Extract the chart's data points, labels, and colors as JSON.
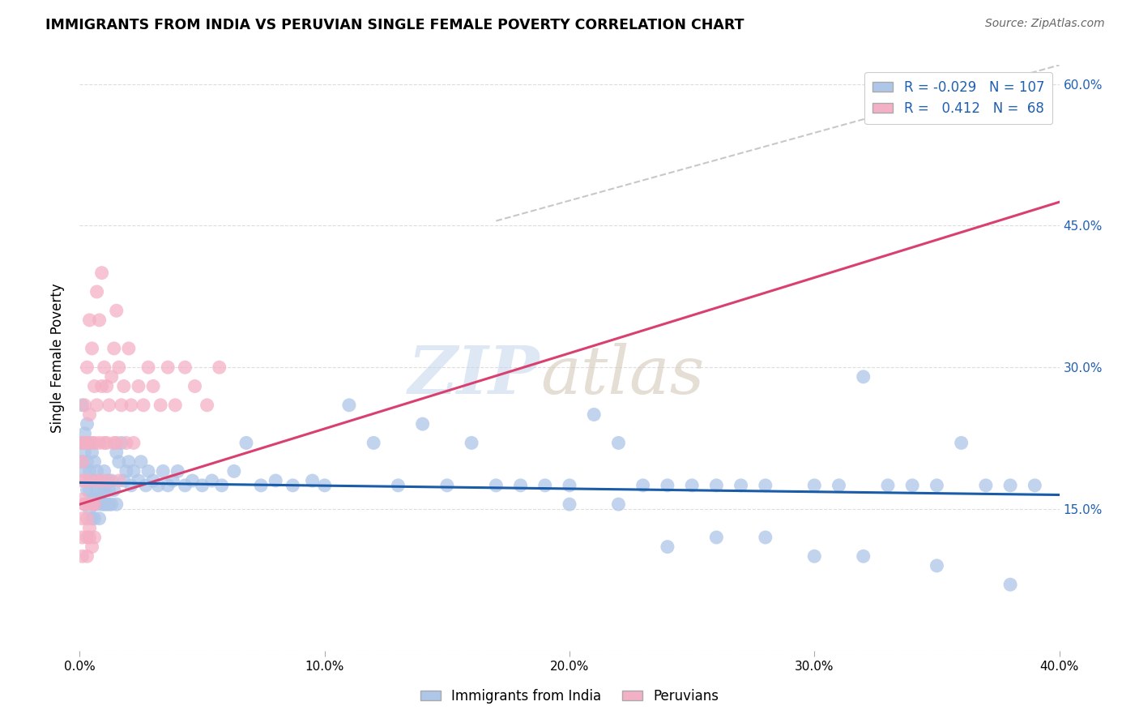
{
  "title": "IMMIGRANTS FROM INDIA VS PERUVIAN SINGLE FEMALE POVERTY CORRELATION CHART",
  "source": "Source: ZipAtlas.com",
  "ylabel": "Single Female Poverty",
  "legend_india_R": "-0.029",
  "legend_india_N": "107",
  "legend_peru_R": "0.412",
  "legend_peru_N": "68",
  "legend_label_india": "Immigrants from India",
  "legend_label_peru": "Peruvians",
  "color_india": "#aec6e8",
  "color_peru": "#f4b0c5",
  "trendline_india_color": "#1a5ca8",
  "trendline_peru_color": "#d94070",
  "trendline_dashed_color": "#c8c8c8",
  "background_color": "#ffffff",
  "xlim": [
    0.0,
    0.4
  ],
  "ylim": [
    0.0,
    0.62
  ],
  "ytick_vals": [
    0.0,
    0.15,
    0.3,
    0.45,
    0.6
  ],
  "xtick_vals": [
    0.0,
    0.1,
    0.2,
    0.3,
    0.4
  ],
  "india_x": [
    0.001,
    0.001,
    0.001,
    0.002,
    0.002,
    0.002,
    0.003,
    0.003,
    0.003,
    0.004,
    0.004,
    0.004,
    0.004,
    0.005,
    0.005,
    0.005,
    0.005,
    0.006,
    0.006,
    0.006,
    0.006,
    0.007,
    0.007,
    0.007,
    0.008,
    0.008,
    0.008,
    0.009,
    0.009,
    0.01,
    0.01,
    0.01,
    0.011,
    0.011,
    0.012,
    0.012,
    0.013,
    0.013,
    0.014,
    0.015,
    0.015,
    0.016,
    0.017,
    0.018,
    0.019,
    0.02,
    0.021,
    0.022,
    0.024,
    0.025,
    0.027,
    0.028,
    0.03,
    0.032,
    0.034,
    0.036,
    0.038,
    0.04,
    0.043,
    0.046,
    0.05,
    0.054,
    0.058,
    0.063,
    0.068,
    0.074,
    0.08,
    0.087,
    0.095,
    0.1,
    0.11,
    0.12,
    0.13,
    0.14,
    0.15,
    0.16,
    0.17,
    0.18,
    0.19,
    0.2,
    0.21,
    0.22,
    0.23,
    0.24,
    0.25,
    0.26,
    0.27,
    0.28,
    0.3,
    0.31,
    0.32,
    0.33,
    0.34,
    0.35,
    0.36,
    0.37,
    0.38,
    0.39,
    0.2,
    0.22,
    0.24,
    0.26,
    0.28,
    0.3,
    0.32,
    0.35,
    0.38
  ],
  "india_y": [
    0.26,
    0.22,
    0.2,
    0.23,
    0.21,
    0.19,
    0.24,
    0.2,
    0.17,
    0.22,
    0.19,
    0.17,
    0.15,
    0.21,
    0.18,
    0.16,
    0.14,
    0.2,
    0.18,
    0.16,
    0.14,
    0.19,
    0.17,
    0.155,
    0.18,
    0.16,
    0.14,
    0.17,
    0.155,
    0.19,
    0.17,
    0.155,
    0.18,
    0.155,
    0.17,
    0.155,
    0.18,
    0.155,
    0.17,
    0.21,
    0.155,
    0.2,
    0.22,
    0.18,
    0.19,
    0.2,
    0.175,
    0.19,
    0.18,
    0.2,
    0.175,
    0.19,
    0.18,
    0.175,
    0.19,
    0.175,
    0.18,
    0.19,
    0.175,
    0.18,
    0.175,
    0.18,
    0.175,
    0.19,
    0.22,
    0.175,
    0.18,
    0.175,
    0.18,
    0.175,
    0.26,
    0.22,
    0.175,
    0.24,
    0.175,
    0.22,
    0.175,
    0.175,
    0.175,
    0.175,
    0.25,
    0.22,
    0.175,
    0.175,
    0.175,
    0.175,
    0.175,
    0.175,
    0.175,
    0.175,
    0.29,
    0.175,
    0.175,
    0.175,
    0.22,
    0.175,
    0.175,
    0.175,
    0.155,
    0.155,
    0.11,
    0.12,
    0.12,
    0.1,
    0.1,
    0.09,
    0.07
  ],
  "peru_x": [
    0.001,
    0.001,
    0.001,
    0.001,
    0.001,
    0.002,
    0.002,
    0.002,
    0.002,
    0.003,
    0.003,
    0.003,
    0.004,
    0.004,
    0.004,
    0.004,
    0.005,
    0.005,
    0.005,
    0.006,
    0.006,
    0.006,
    0.007,
    0.007,
    0.007,
    0.008,
    0.008,
    0.009,
    0.009,
    0.009,
    0.01,
    0.01,
    0.011,
    0.011,
    0.012,
    0.012,
    0.013,
    0.014,
    0.014,
    0.015,
    0.015,
    0.016,
    0.016,
    0.017,
    0.018,
    0.019,
    0.02,
    0.021,
    0.022,
    0.024,
    0.026,
    0.028,
    0.03,
    0.033,
    0.036,
    0.039,
    0.043,
    0.047,
    0.052,
    0.057,
    0.001,
    0.001,
    0.002,
    0.003,
    0.003,
    0.004,
    0.005,
    0.006
  ],
  "peru_y": [
    0.22,
    0.2,
    0.18,
    0.16,
    0.14,
    0.26,
    0.22,
    0.18,
    0.155,
    0.3,
    0.22,
    0.14,
    0.35,
    0.25,
    0.18,
    0.13,
    0.32,
    0.22,
    0.155,
    0.28,
    0.22,
    0.155,
    0.38,
    0.26,
    0.18,
    0.35,
    0.22,
    0.4,
    0.28,
    0.18,
    0.3,
    0.22,
    0.28,
    0.22,
    0.26,
    0.18,
    0.29,
    0.32,
    0.22,
    0.36,
    0.22,
    0.3,
    0.18,
    0.26,
    0.28,
    0.22,
    0.32,
    0.26,
    0.22,
    0.28,
    0.26,
    0.3,
    0.28,
    0.26,
    0.3,
    0.26,
    0.3,
    0.28,
    0.26,
    0.3,
    0.12,
    0.1,
    0.155,
    0.12,
    0.1,
    0.12,
    0.11,
    0.12
  ],
  "india_trend_x0": 0.0,
  "india_trend_y0": 0.178,
  "india_trend_x1": 0.4,
  "india_trend_y1": 0.165,
  "peru_trend_x0": 0.0,
  "peru_trend_y0": 0.155,
  "peru_trend_x1": 0.4,
  "peru_trend_y1": 0.475,
  "dashed_trend_x0": 0.17,
  "dashed_trend_y0": 0.455,
  "dashed_trend_x1": 0.4,
  "dashed_trend_y1": 0.62
}
